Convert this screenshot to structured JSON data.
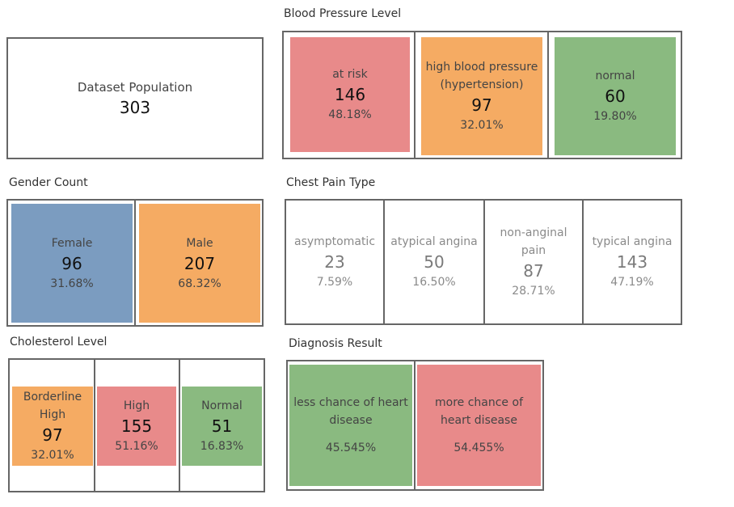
{
  "population": {
    "label": "Dataset Population",
    "value": "303"
  },
  "blood_pressure": {
    "title": "Blood Pressure Level",
    "items": [
      {
        "label": "at risk",
        "value": "146",
        "pct": "48.18%",
        "color": "#e88a8a"
      },
      {
        "label": "high blood pressure (hypertension)",
        "value": "97",
        "pct": "32.01%",
        "color": "#f5ab63"
      },
      {
        "label": "normal",
        "value": "60",
        "pct": "19.80%",
        "color": "#8aba80"
      }
    ]
  },
  "gender": {
    "title": "Gender Count",
    "items": [
      {
        "label": "Female",
        "value": "96",
        "pct": "31.68%",
        "color": "#7b9cc0"
      },
      {
        "label": "Male",
        "value": "207",
        "pct": "68.32%",
        "color": "#f5ab63"
      }
    ]
  },
  "chest_pain": {
    "title": "Chest Pain Type",
    "items": [
      {
        "label": "asymptomatic",
        "value": "23",
        "pct": "7.59%"
      },
      {
        "label": "atypical angina",
        "value": "50",
        "pct": "16.50%"
      },
      {
        "label": "non-anginal pain",
        "value": "87",
        "pct": "28.71%"
      },
      {
        "label": "typical angina",
        "value": "143",
        "pct": "47.19%"
      }
    ]
  },
  "cholesterol": {
    "title": "Cholesterol Level",
    "items": [
      {
        "label": "Borderline High",
        "value": "97",
        "pct": "32.01%",
        "color": "#f5ab63"
      },
      {
        "label": "High",
        "value": "155",
        "pct": "51.16%",
        "color": "#e88a8a"
      },
      {
        "label": "Normal",
        "value": "51",
        "pct": "16.83%",
        "color": "#8aba80"
      }
    ]
  },
  "diagnosis": {
    "title": "Diagnosis Result",
    "items": [
      {
        "label": "less chance of heart disease",
        "pct": "45.545%",
        "color": "#8aba80"
      },
      {
        "label": "more chance of heart disease",
        "pct": "54.455%",
        "color": "#e88a8a"
      }
    ]
  },
  "chart_data": [
    {
      "type": "table",
      "title": "Dataset Population",
      "values": [
        303
      ]
    },
    {
      "type": "table",
      "title": "Blood Pressure Level",
      "categories": [
        "at risk",
        "high blood pressure (hypertension)",
        "normal"
      ],
      "values": [
        146,
        97,
        60
      ],
      "percent": [
        48.18,
        32.01,
        19.8
      ]
    },
    {
      "type": "table",
      "title": "Gender Count",
      "categories": [
        "Female",
        "Male"
      ],
      "values": [
        96,
        207
      ],
      "percent": [
        31.68,
        68.32
      ]
    },
    {
      "type": "table",
      "title": "Chest Pain Type",
      "categories": [
        "asymptomatic",
        "atypical angina",
        "non-anginal pain",
        "typical angina"
      ],
      "values": [
        23,
        50,
        87,
        143
      ],
      "percent": [
        7.59,
        16.5,
        28.71,
        47.19
      ]
    },
    {
      "type": "table",
      "title": "Cholesterol Level",
      "categories": [
        "Borderline High",
        "High",
        "Normal"
      ],
      "values": [
        97,
        155,
        51
      ],
      "percent": [
        32.01,
        51.16,
        16.83
      ]
    },
    {
      "type": "table",
      "title": "Diagnosis Result",
      "categories": [
        "less chance of heart disease",
        "more chance of heart disease"
      ],
      "percent": [
        45.545,
        54.455
      ]
    }
  ]
}
